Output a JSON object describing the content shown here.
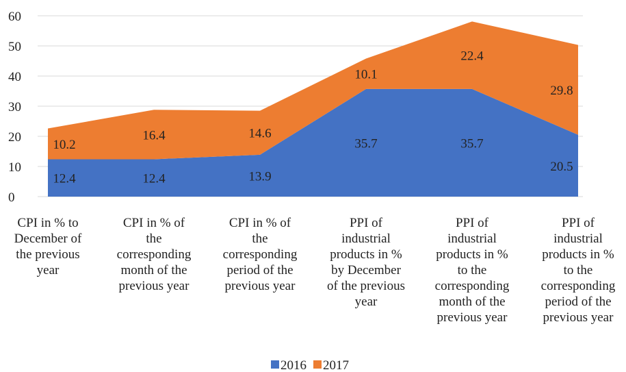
{
  "chart_data": {
    "type": "stacked_area",
    "categories": [
      "CPI in % to\nDecember of\nthe previous\nyear",
      "CPI in % of\nthe\ncorresponding\nmonth of the\nprevious year",
      "CPI in % of\nthe\ncorresponding\nperiod of the\nprevious year",
      "PPI of\nindustrial\nproducts in %\nby December\nof the previous\nyear",
      "PPI of\nindustrial\nproducts in %\nto the\ncorresponding\nmonth of the\nprevious year",
      "PPI of\nindustrial\nproducts in %\nto the\ncorresponding\nperiod of the\nprevious year"
    ],
    "series": [
      {
        "name": "2016",
        "color": "#4472c4",
        "values": [
          12.4,
          12.4,
          13.9,
          35.7,
          35.7,
          20.5
        ]
      },
      {
        "name": "2017",
        "color": "#ed7d31",
        "values": [
          10.2,
          16.4,
          14.6,
          10.1,
          22.4,
          29.8
        ]
      }
    ],
    "ylim": [
      0,
      60
    ],
    "yticks": [
      0,
      10,
      20,
      30,
      40,
      50,
      60
    ],
    "grid": true,
    "legend": "bottom"
  }
}
